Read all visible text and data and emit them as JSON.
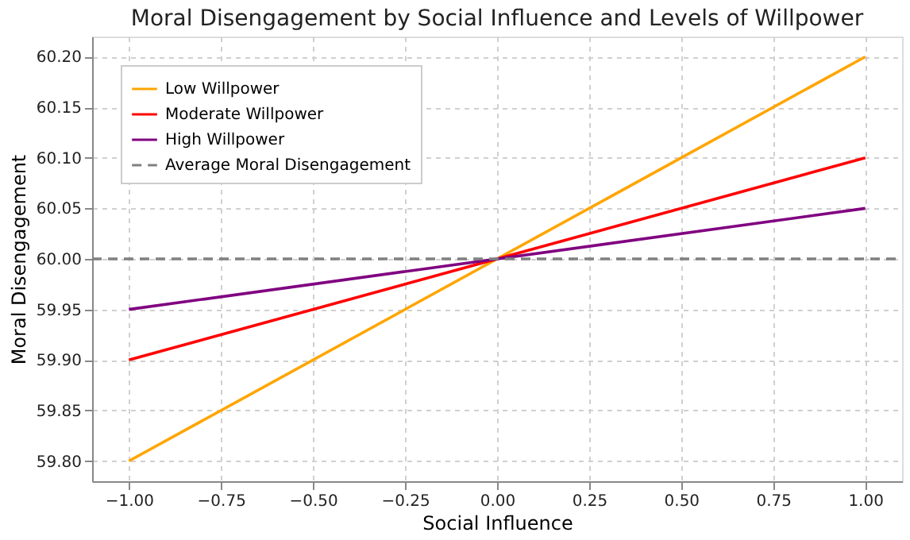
{
  "chart_data": {
    "type": "line",
    "title": "Moral Disengagement by Social Influence and Levels of Willpower",
    "xlabel": "Social Influence",
    "ylabel": "Moral Disengagement",
    "x": [
      -1.0,
      1.0
    ],
    "series": [
      {
        "name": "Low Willpower",
        "color": "#ffa500",
        "values": [
          59.8,
          60.2
        ]
      },
      {
        "name": "Moderate Willpower",
        "color": "#ff0000",
        "values": [
          59.9,
          60.1
        ]
      },
      {
        "name": "High Willpower",
        "color": "#800080",
        "values": [
          59.95,
          60.05
        ]
      }
    ],
    "ref_lines": [
      {
        "axis": "y",
        "value": 60.0,
        "label": "Average Moral Disengagement",
        "color": "#808080",
        "line_style": "dashed"
      }
    ],
    "xlim": [
      -1.1,
      1.1
    ],
    "ylim": [
      59.78,
      60.22
    ],
    "xticks": [
      {
        "value": -1.0,
        "label": "−1.00"
      },
      -0.75,
      {
        "value": -0.5,
        "label": "−0.50"
      },
      -0.25,
      {
        "value": 0.0,
        "label": "0.00"
      },
      0.25,
      {
        "value": 0.5,
        "label": "0.50"
      },
      0.75,
      {
        "value": 1.0,
        "label": "1.00"
      }
    ],
    "yticks": [
      {
        "value": 59.8,
        "label": "59.80"
      },
      59.85,
      {
        "value": 59.9,
        "label": "59.90"
      },
      59.95,
      {
        "value": 60.0,
        "label": "60.00"
      },
      60.05,
      {
        "value": 60.1,
        "label": "60.10"
      },
      60.15,
      {
        "value": 60.2,
        "label": "60.20"
      }
    ],
    "grid": true,
    "legend": "top left",
    "line_style": "solid",
    "marker": "none"
  }
}
